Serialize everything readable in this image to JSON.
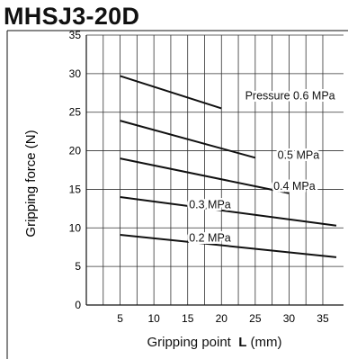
{
  "chart_data": {
    "type": "line",
    "title": "MHSJ3-20D",
    "xlabel": "Gripping point",
    "xlabel_symbol": "L",
    "xlabel_unit": "(mm)",
    "ylabel": "Gripping force  (N)",
    "xlim": [
      0,
      37
    ],
    "ylim": [
      0,
      35
    ],
    "x_ticks": [
      5,
      10,
      15,
      20,
      25,
      30,
      35
    ],
    "y_ticks": [
      0,
      5,
      10,
      15,
      20,
      25,
      30,
      35
    ],
    "grid": true,
    "series": [
      {
        "name": "Pressure 0.6 MPa",
        "x": [
          5,
          20
        ],
        "y": [
          29.7,
          25.5
        ]
      },
      {
        "name": "0.5 MPa",
        "x": [
          5,
          25
        ],
        "y": [
          23.9,
          19.1
        ]
      },
      {
        "name": "0.4 MPa",
        "x": [
          5,
          30
        ],
        "y": [
          19.0,
          14.5
        ]
      },
      {
        "name": "0.3 MPa",
        "x": [
          5,
          37
        ],
        "y": [
          14.0,
          10.3
        ]
      },
      {
        "name": "0.2 MPa",
        "x": [
          5,
          37
        ],
        "y": [
          9.1,
          6.2
        ]
      }
    ]
  }
}
